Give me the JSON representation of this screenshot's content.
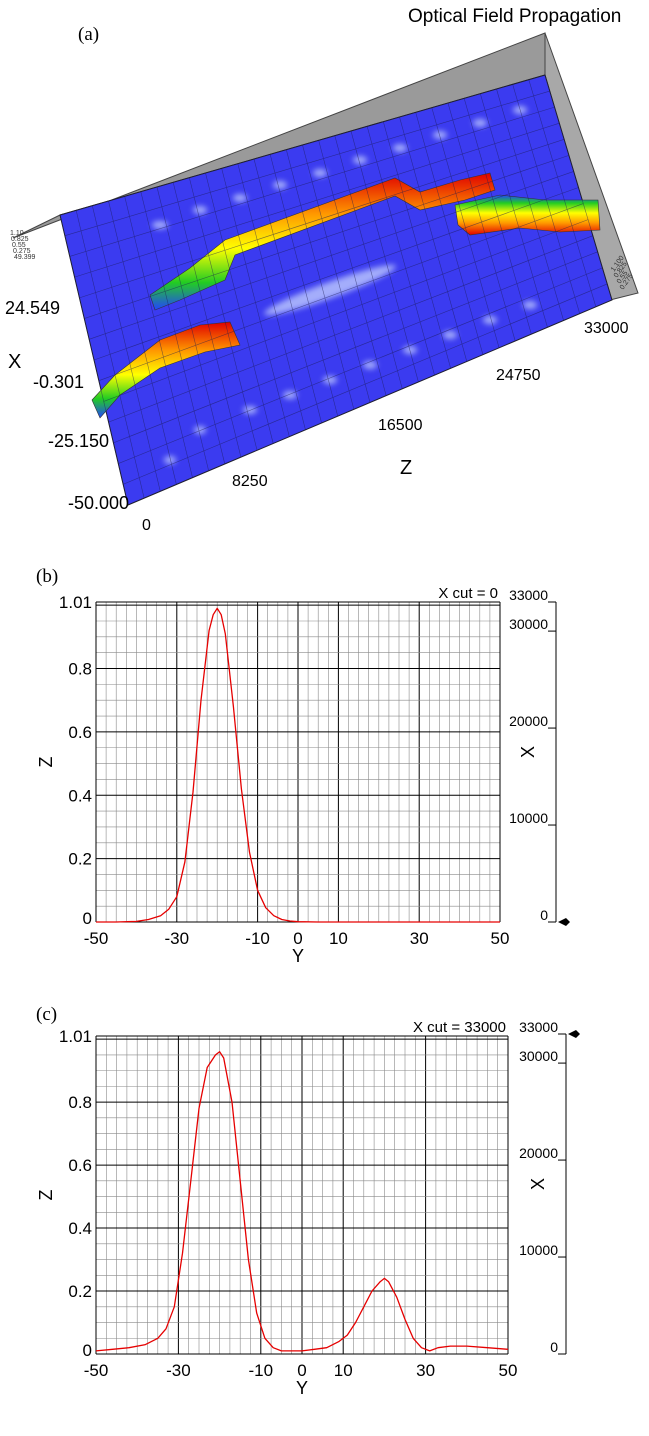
{
  "panel_a": {
    "label": "(a)",
    "title": "Optical Field Propagation",
    "x_axis_label": "X",
    "z_axis_label": "Z",
    "x_ticks": [
      "24.549",
      "-0.301",
      "-25.150",
      "-50.000"
    ],
    "z_ticks": [
      "0",
      "8250",
      "16500",
      "24750",
      "33000"
    ],
    "upper_small_ticks": [
      "1.10",
      "0.825",
      "0.55",
      "0.275",
      "49.399"
    ],
    "right_small_ticks": [
      "1.100",
      "0.825",
      "0.55",
      "0.275"
    ]
  },
  "colors": {
    "curve": "#e60000",
    "grid_major": "#000000",
    "grid_minor": "#8a8a8a",
    "surface": "#3b3bf0"
  },
  "chart_data": [
    {
      "type": "line",
      "panel": "(b)",
      "annotation": "X cut = 0",
      "xlabel": "Y",
      "ylabel": "Z",
      "right_axis_label": "X",
      "xlim": [
        -50,
        50
      ],
      "ylim": [
        0,
        1.01
      ],
      "x_ticks": [
        "-50",
        "-30",
        "-10",
        "0",
        "10",
        "30",
        "50"
      ],
      "y_ticks": [
        "0",
        "0.2",
        "0.4",
        "0.6",
        "0.8",
        "1.01"
      ],
      "right_ticks": [
        "0",
        "10000",
        "20000",
        "30000",
        "33000"
      ],
      "right_marker_value": 0,
      "series": [
        {
          "x": [
            -50,
            -45,
            -40,
            -37,
            -34,
            -32,
            -30,
            -28,
            -26,
            -24,
            -22,
            -21,
            -20,
            -19,
            -18,
            -16,
            -14,
            -12,
            -10,
            -8,
            -6,
            -4,
            -2,
            0,
            5,
            10,
            20,
            30,
            40,
            50
          ],
          "y": [
            0.0,
            0.0,
            0.002,
            0.008,
            0.02,
            0.04,
            0.08,
            0.19,
            0.41,
            0.7,
            0.92,
            0.97,
            0.99,
            0.97,
            0.91,
            0.68,
            0.42,
            0.22,
            0.1,
            0.045,
            0.02,
            0.008,
            0.003,
            0.001,
            0.0,
            0.0,
            0.0,
            0.0,
            0.0,
            0.0
          ]
        }
      ]
    },
    {
      "type": "line",
      "panel": "(c)",
      "annotation": "X cut = 33000",
      "xlabel": "Y",
      "ylabel": "Z",
      "right_axis_label": "X",
      "xlim": [
        -50,
        50
      ],
      "ylim": [
        0,
        1.01
      ],
      "x_ticks": [
        "-50",
        "-30",
        "-10",
        "0",
        "10",
        "30",
        "50"
      ],
      "y_ticks": [
        "0",
        "0.2",
        "0.4",
        "0.6",
        "0.8",
        "1.01"
      ],
      "right_ticks": [
        "0",
        "10000",
        "20000",
        "30000",
        "33000"
      ],
      "right_marker_value": 33000,
      "series": [
        {
          "x": [
            -50,
            -46,
            -42,
            -38,
            -35,
            -33,
            -31,
            -29,
            -27,
            -25,
            -23,
            -21,
            -20,
            -19,
            -17,
            -15,
            -13,
            -11,
            -9,
            -7,
            -5,
            -3,
            0,
            3,
            6,
            9,
            11,
            13,
            15,
            17,
            19,
            20,
            21,
            23,
            25,
            27,
            29,
            31,
            33,
            36,
            40,
            45,
            50
          ],
          "y": [
            0.01,
            0.015,
            0.02,
            0.03,
            0.05,
            0.08,
            0.15,
            0.32,
            0.55,
            0.78,
            0.91,
            0.95,
            0.96,
            0.94,
            0.8,
            0.55,
            0.3,
            0.13,
            0.05,
            0.02,
            0.01,
            0.01,
            0.01,
            0.015,
            0.02,
            0.04,
            0.06,
            0.1,
            0.15,
            0.2,
            0.23,
            0.24,
            0.23,
            0.18,
            0.11,
            0.05,
            0.02,
            0.01,
            0.02,
            0.025,
            0.025,
            0.02,
            0.015
          ]
        }
      ]
    }
  ]
}
